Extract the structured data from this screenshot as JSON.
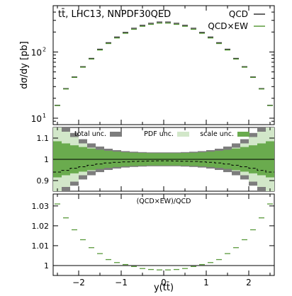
{
  "chart_data": [
    {
      "type": "line",
      "panel": "main",
      "title": "tt̄, LHC13, NNPDF30QED",
      "ylabel": "dσ/dy [pb]",
      "yscale": "log",
      "ylim": [
        8,
        500
      ],
      "xlim": [
        -2.6,
        2.6
      ],
      "yticks": [
        {
          "value": 10,
          "label": "10",
          "sup": "1"
        },
        {
          "value": 100,
          "label": "10",
          "sup": "2"
        }
      ],
      "x_bin_edges": [
        -2.6,
        -2.4,
        -2.2,
        -2.0,
        -1.8,
        -1.6,
        -1.4,
        -1.2,
        -1.0,
        -0.8,
        -0.6,
        -0.4,
        -0.2,
        0.0,
        0.2,
        0.4,
        0.6,
        0.8,
        1.0,
        1.2,
        1.4,
        1.6,
        1.8,
        2.0,
        2.2,
        2.4,
        2.6
      ],
      "series": [
        {
          "name": "QCD",
          "color": "#333333",
          "values": [
            15.7,
            28,
            42,
            60,
            80,
            110,
            138,
            168,
            198,
            228,
            253,
            271,
            283,
            283,
            271,
            253,
            228,
            198,
            168,
            138,
            110,
            80,
            60,
            42,
            28,
            15.7
          ]
        },
        {
          "name": "QCD×EW",
          "color": "#5a9a3c",
          "values": [
            16.1,
            28.6,
            42.8,
            61,
            81,
            111,
            139,
            168.5,
            198,
            227.8,
            252.5,
            270.5,
            282.4,
            282.4,
            270.5,
            252.5,
            227.8,
            198,
            168.5,
            139,
            111,
            81,
            61,
            42.8,
            28.6,
            16.1
          ]
        }
      ],
      "legend": "top-right"
    },
    {
      "type": "area",
      "panel": "ratio-uncertainty",
      "ylim": [
        0.85,
        1.15
      ],
      "yticks": [
        0.9,
        1,
        1.1
      ],
      "legend_entries": [
        {
          "name": "total unc.",
          "color": "#7d7d7d"
        },
        {
          "name": "PDF unc.",
          "color": "#d2e7c9"
        },
        {
          "name": "scale unc.",
          "color": "#6aab4e"
        }
      ],
      "pdf_unc_halfwidth": [
        0.15,
        0.13,
        0.105,
        0.075,
        0.055,
        0.04,
        0.03,
        0.024,
        0.02,
        0.018,
        0.016,
        0.015,
        0.015,
        0.015,
        0.015,
        0.016,
        0.018,
        0.02,
        0.024,
        0.03,
        0.04,
        0.055,
        0.075,
        0.105,
        0.13,
        0.15
      ],
      "scale_unc_halfwidth": [
        0.085,
        0.075,
        0.066,
        0.058,
        0.051,
        0.045,
        0.04,
        0.036,
        0.033,
        0.031,
        0.03,
        0.029,
        0.029,
        0.029,
        0.029,
        0.03,
        0.031,
        0.033,
        0.036,
        0.04,
        0.045,
        0.051,
        0.058,
        0.066,
        0.075,
        0.085
      ],
      "dashed_line": [
        0.94,
        0.948,
        0.958,
        0.965,
        0.972,
        0.978,
        0.983,
        0.986,
        0.988,
        0.99,
        0.991,
        0.992,
        0.993,
        0.993,
        0.992,
        0.991,
        0.99,
        0.988,
        0.986,
        0.983,
        0.978,
        0.972,
        0.965,
        0.958,
        0.948,
        0.94
      ]
    },
    {
      "type": "line",
      "panel": "ratio-ew",
      "annotation": "(QCD×EW)/QCD",
      "xlabel": "y(tt̄)",
      "ylim": [
        0.995,
        1.036
      ],
      "yticks": [
        1,
        1.01,
        1.02,
        1.03
      ],
      "xticks": [
        -2,
        -1,
        0,
        1,
        2
      ],
      "values": [
        1.031,
        1.024,
        1.018,
        1.013,
        1.009,
        1.006,
        1.003,
        1.0015,
        1.0005,
        0.9995,
        0.9985,
        0.998,
        0.9978,
        0.9978,
        0.998,
        0.9985,
        0.9995,
        1.0005,
        1.0015,
        1.003,
        1.006,
        1.009,
        1.013,
        1.018,
        1.024,
        1.031
      ],
      "reference_line": 1
    }
  ]
}
